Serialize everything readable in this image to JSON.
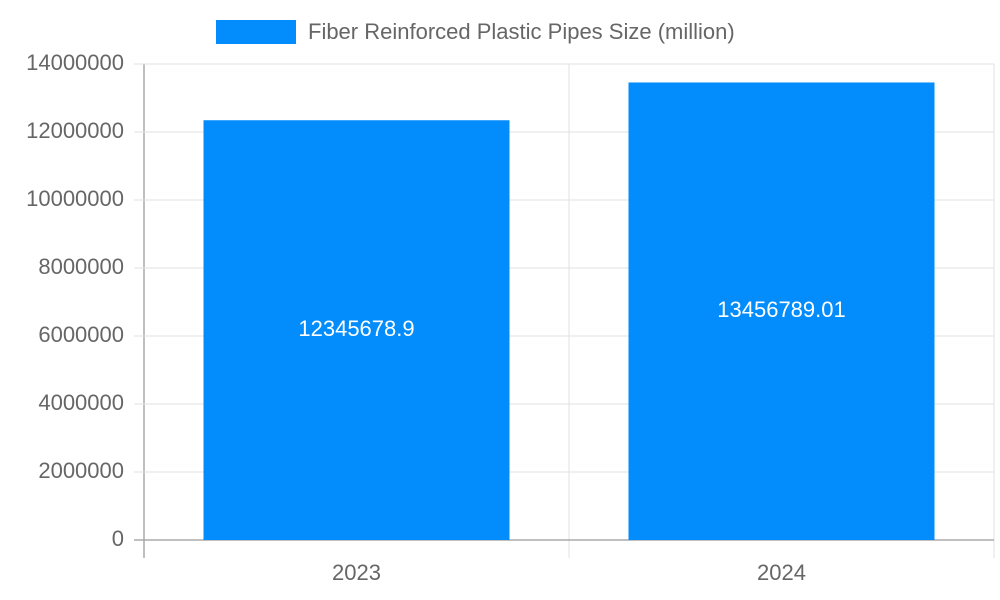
{
  "chart_data": {
    "type": "bar",
    "categories": [
      "2023",
      "2024"
    ],
    "series": [
      {
        "name": "Fiber Reinforced Plastic Pipes Size (million)",
        "color": "#038cfc",
        "values": [
          12345678.9,
          13456789.01
        ]
      }
    ],
    "ylim": [
      0,
      14000000
    ],
    "yticks": [
      0,
      2000000,
      4000000,
      6000000,
      8000000,
      10000000,
      12000000,
      14000000
    ],
    "grid": true,
    "legend": "top"
  }
}
